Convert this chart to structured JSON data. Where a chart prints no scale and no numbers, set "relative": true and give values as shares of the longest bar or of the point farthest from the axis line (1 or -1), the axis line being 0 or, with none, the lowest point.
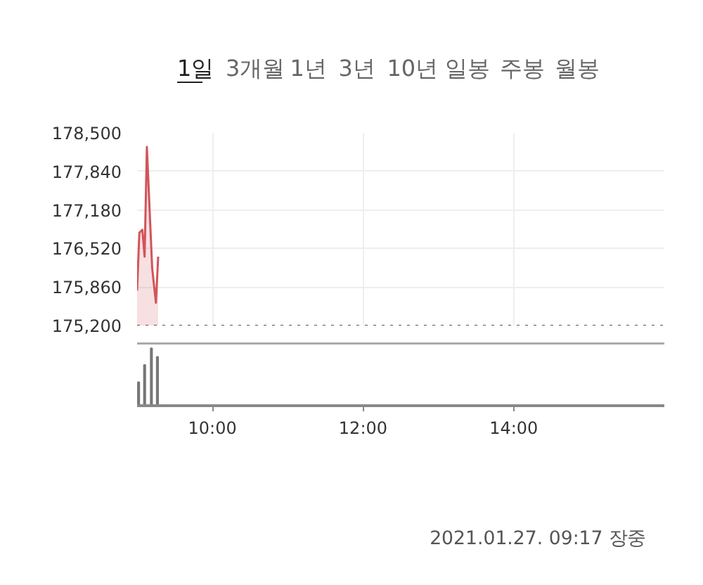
{
  "chart_data": [
    {
      "type": "other",
      "annotations": [
        "1일",
        "3개월",
        "1년",
        "3년",
        "10년",
        "일봉",
        "주봉",
        "월봉"
      ]
    },
    {
      "type": "area",
      "x": [
        9.0,
        9.03,
        9.07,
        9.1,
        9.13,
        9.2,
        9.25,
        9.28
      ],
      "series": [
        {
          "color": "#d0555a",
          "values": [
            175800,
            176790,
            176840,
            176380,
            178260,
            176190,
            175590,
            176380
          ]
        }
      ],
      "xlim": [
        9,
        16
      ],
      "xticks": [
        {
          "value": 10,
          "label": null
        },
        {
          "value": 12,
          "label": null
        },
        {
          "value": 14,
          "label": null
        }
      ],
      "ylim": [
        175200,
        178500
      ],
      "yticks": [
        {
          "value": 175200,
          "label": "175,200"
        },
        {
          "value": 175860,
          "label": "175,860"
        },
        {
          "value": 176520,
          "label": "176,520"
        },
        {
          "value": 177180,
          "label": "177,180"
        },
        {
          "value": 177840,
          "label": "177,840"
        },
        {
          "value": 178500,
          "label": "178,500"
        }
      ],
      "ref_lines": [
        {
          "axis": "y",
          "value": 175200,
          "label": null,
          "line_style": "dotted",
          "color": "#555555"
        }
      ],
      "grid": true,
      "tick_labels": "y"
    },
    {
      "type": "bar",
      "x": [
        9.02,
        9.1,
        9.19,
        9.27
      ],
      "series": [
        {
          "color": "#777777",
          "values": [
            0.41,
            0.71,
            1,
            0.85
          ]
        }
      ],
      "relative": true,
      "xlim": [
        9,
        16
      ],
      "xticks": [
        {
          "value": 10,
          "label": "10:00"
        },
        {
          "value": 12,
          "label": "12:00"
        },
        {
          "value": 14,
          "label": "14:00"
        }
      ],
      "tick_labels": "x",
      "annotations": [
        "2021.01.27. 09:17 장중"
      ]
    }
  ]
}
